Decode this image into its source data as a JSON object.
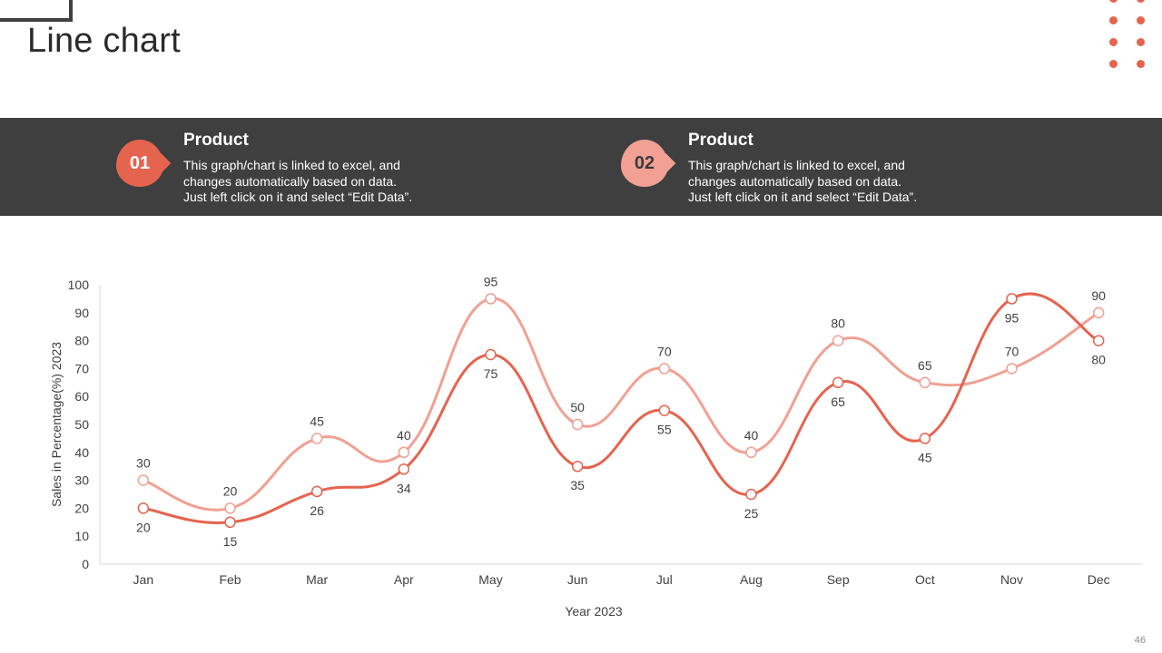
{
  "slide": {
    "title": "Line chart",
    "page_number": "46"
  },
  "cards": [
    {
      "number": "01",
      "title": "Product",
      "lines": [
        "This graph/chart is linked to excel, and",
        "changes automatically based on data.",
        "Just left click on it and select “Edit Data”."
      ],
      "color": "#e5644f"
    },
    {
      "number": "02",
      "title": "Product",
      "lines": [
        "This graph/chart is linked to excel, and",
        "changes automatically based on data.",
        "Just left click on it and select “Edit Data”."
      ],
      "color": "#f1a093"
    }
  ],
  "colors": {
    "accent": "#e5644f",
    "accent_light": "#f1a093",
    "band": "#3f3f3f"
  },
  "chart_data": {
    "type": "line",
    "title": "",
    "xlabel": "Year 2023",
    "ylabel": "Sales in Percentage(%) 2023",
    "ylim": [
      0,
      100
    ],
    "yticks": [
      0,
      10,
      20,
      30,
      40,
      50,
      60,
      70,
      80,
      90,
      100
    ],
    "categories": [
      "Jan",
      "Feb",
      "Mar",
      "Apr",
      "May",
      "Jun",
      "Jul",
      "Aug",
      "Sep",
      "Oct",
      "Nov",
      "Dec"
    ],
    "grid": false,
    "smooth": true,
    "series": [
      {
        "values": [
          20,
          15,
          26,
          34,
          75,
          35,
          55,
          25,
          65,
          45,
          95,
          80
        ],
        "color": "#e5644f",
        "label_position": "below"
      },
      {
        "values": [
          30,
          20,
          45,
          40,
          95,
          50,
          70,
          40,
          80,
          65,
          70,
          90
        ],
        "color": "#f1a093",
        "label_position": "above"
      }
    ]
  }
}
